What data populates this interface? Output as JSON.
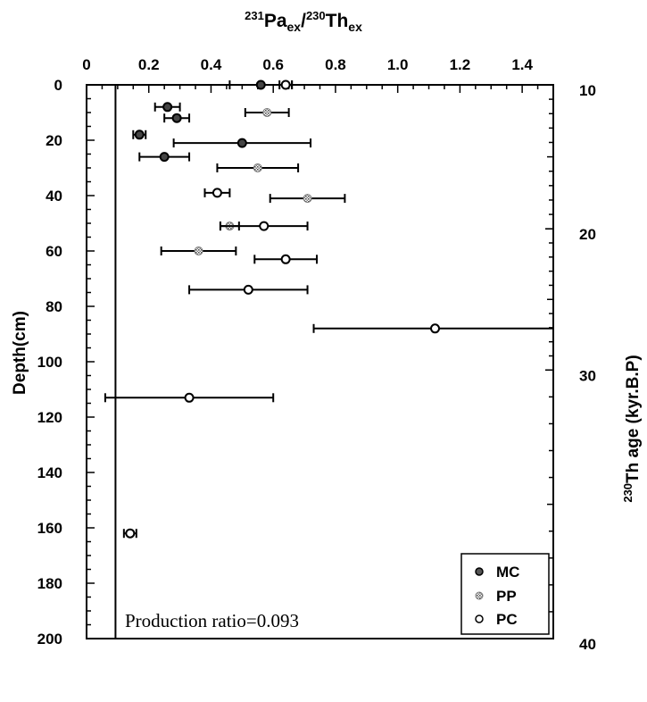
{
  "chart_data": {
    "type": "scatter",
    "title": "",
    "top_axis": {
      "label_parts": [
        "231",
        "Pa",
        "ex",
        "/",
        "230",
        "Th",
        "ex"
      ],
      "range": [
        0,
        1.5
      ],
      "ticks": [
        0,
        0.2,
        0.4,
        0.6,
        0.8,
        1.0,
        1.2,
        1.4
      ],
      "tick_labels": [
        "0",
        "0.2",
        "0.4",
        "0.6",
        "0.8",
        "1.0",
        "1.2",
        "1.4"
      ]
    },
    "left_axis": {
      "label": "Depth(cm)",
      "range": [
        0,
        200
      ],
      "inverted": true,
      "ticks": [
        0,
        20,
        40,
        60,
        80,
        100,
        120,
        140,
        160,
        180,
        200
      ],
      "tick_labels": [
        "0",
        "20",
        "40",
        "60",
        "80",
        "100",
        "120",
        "140",
        "160",
        "180",
        "200"
      ]
    },
    "right_axis": {
      "label_parts": [
        "230",
        "Th age (kyr.B.P)"
      ],
      "ticks": [
        {
          "depth": 0,
          "label": "10"
        },
        {
          "depth": 52,
          "label": "20"
        },
        {
          "depth": 103,
          "label": "30"
        },
        {
          "depth": 200,
          "label": "40"
        }
      ]
    },
    "production_ratio": {
      "value": 0.093,
      "label": "Production ratio=0.093"
    },
    "legend": {
      "position": "bottom-right",
      "entries": [
        {
          "name": "MC",
          "marker": "mc"
        },
        {
          "name": "PP",
          "marker": "pp"
        },
        {
          "name": "PC",
          "marker": "pc"
        }
      ]
    },
    "series": [
      {
        "name": "MC",
        "marker": "mc",
        "points": [
          {
            "depth": 0,
            "ratio": 0.56,
            "err": 0.1
          },
          {
            "depth": 8,
            "ratio": 0.26,
            "err": 0.04
          },
          {
            "depth": 12,
            "ratio": 0.29,
            "err": 0.04
          },
          {
            "depth": 18,
            "ratio": 0.17,
            "err": 0.02
          },
          {
            "depth": 21,
            "ratio": 0.5,
            "err": 0.22
          },
          {
            "depth": 26,
            "ratio": 0.25,
            "err": 0.08
          }
        ]
      },
      {
        "name": "PP",
        "marker": "pp",
        "points": [
          {
            "depth": 10,
            "ratio": 0.58,
            "err": 0.07
          },
          {
            "depth": 30,
            "ratio": 0.55,
            "err": 0.13
          },
          {
            "depth": 41,
            "ratio": 0.71,
            "err": 0.12
          },
          {
            "depth": 51,
            "ratio": 0.46,
            "err": 0.03
          },
          {
            "depth": 60,
            "ratio": 0.36,
            "err": 0.12
          }
        ]
      },
      {
        "name": "PC",
        "marker": "pc",
        "points": [
          {
            "depth": 0,
            "ratio": 0.64,
            "err": 0.02
          },
          {
            "depth": 39,
            "ratio": 0.42,
            "err": 0.04
          },
          {
            "depth": 51,
            "ratio": 0.57,
            "err": 0.14
          },
          {
            "depth": 63,
            "ratio": 0.64,
            "err": 0.1
          },
          {
            "depth": 74,
            "ratio": 0.52,
            "err": 0.19
          },
          {
            "depth": 88,
            "ratio": 1.12,
            "err": 0.39
          },
          {
            "depth": 113,
            "ratio": 0.33,
            "err": 0.27
          },
          {
            "depth": 162,
            "ratio": 0.14,
            "err": 0.02
          }
        ]
      }
    ]
  }
}
